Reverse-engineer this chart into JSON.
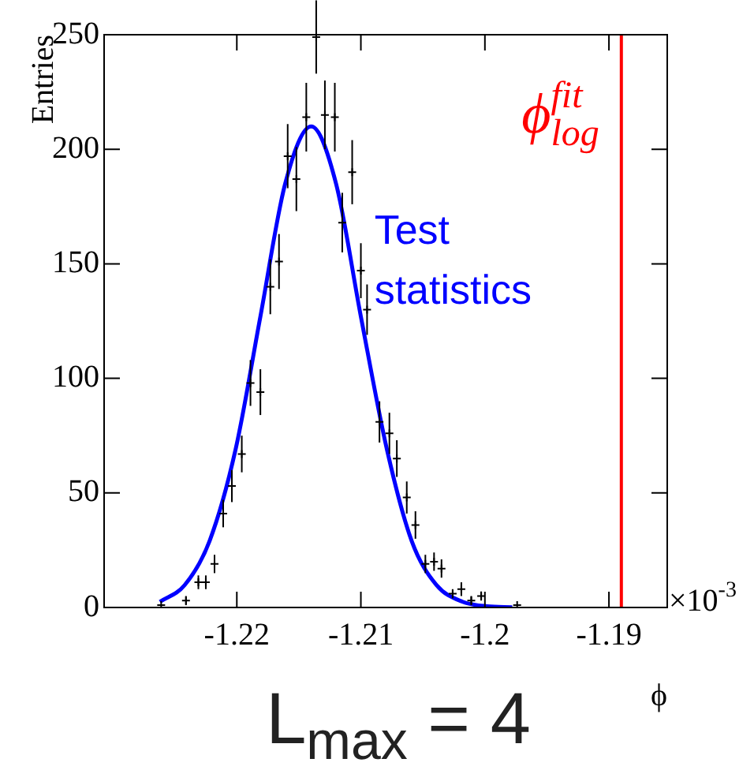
{
  "chart_data": {
    "type": "scatter",
    "ylabel": "Entries",
    "xlabel": "ϕ",
    "annotations": [
      "×10$^{-3}$",
      "L$_{max}$ = 4"
    ],
    "xlim": [
      -1.2307,
      -1.1853
    ],
    "xticks": [
      -1.22,
      -1.21,
      -1.2,
      -1.19
    ],
    "ylim": [
      0,
      250
    ],
    "yticks": [
      0,
      50,
      100,
      150,
      200,
      250
    ],
    "grid": false,
    "legend": false,
    "series": [
      {
        "color": "#000000",
        "marker": "cross",
        "x": [
          -1.2261,
          -1.2241,
          -1.2231,
          -1.2225,
          -1.2218,
          -1.2211,
          -1.2204,
          -1.2196,
          -1.2189,
          -1.2181,
          -1.2173,
          -1.2166,
          -1.2159,
          -1.2152,
          -1.2144,
          -1.2136,
          -1.2129,
          -1.2121,
          -1.2115,
          -1.2107,
          -1.21,
          -1.2095,
          -1.2085,
          -1.2077,
          -1.2071,
          -1.2063,
          -1.2056,
          -1.2048,
          -1.2041,
          -1.2035,
          -1.2026,
          -1.2019,
          -1.2011,
          -1.2003,
          -1.1974
        ],
        "values": [
          1,
          3,
          11,
          11,
          19,
          41,
          53,
          67,
          98,
          94,
          140,
          151,
          197,
          187,
          214,
          249,
          215,
          214,
          168,
          190,
          147,
          130,
          81,
          76,
          65,
          48,
          36,
          19,
          20,
          17,
          6,
          8,
          3,
          5,
          1
        ],
        "errors": [
          null,
          2,
          3,
          3,
          4,
          6,
          7,
          8,
          10,
          10,
          12,
          12,
          14,
          14,
          15,
          16,
          15,
          15,
          13,
          14,
          12,
          11,
          9,
          9,
          8,
          7,
          6,
          4,
          4,
          4,
          2,
          3,
          2,
          2,
          null
        ]
      },
      {
        "type": "line",
        "name": "Test statistics",
        "color": "#0000ff",
        "marker": "none",
        "line_style": "solid",
        "x": [
          -1.2262,
          -1.2242,
          -1.2222,
          -1.2201,
          -1.2181,
          -1.2161,
          -1.214,
          -1.212,
          -1.21,
          -1.2079,
          -1.2059,
          -1.2039,
          -1.2018,
          -1.1998,
          -1.1978
        ],
        "values": [
          2.5,
          9.8,
          29,
          69,
          127,
          185,
          210,
          185,
          127,
          69,
          29,
          9.8,
          2.5,
          0.5,
          0.1
        ]
      }
    ],
    "ref_lines": [
      {
        "axis": "x",
        "value": -1.189,
        "label": "ϕ$^{fit}$$_{log}$",
        "color": "#ff0000",
        "line_style": "solid"
      }
    ]
  }
}
